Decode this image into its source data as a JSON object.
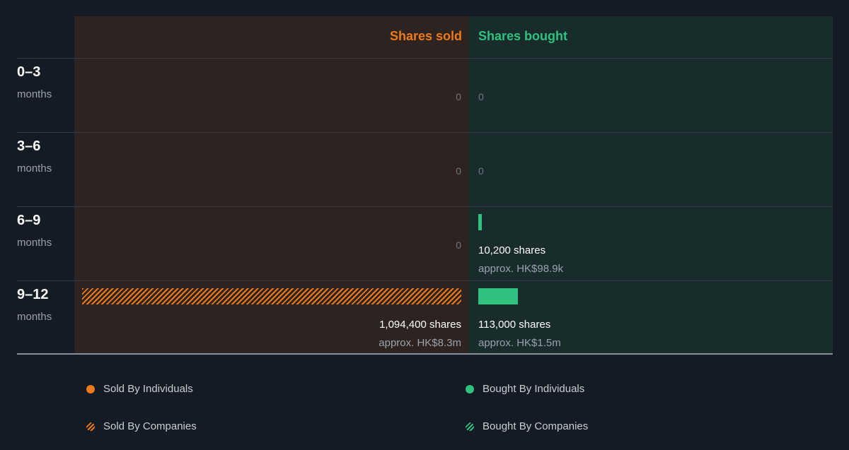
{
  "chart_data": {
    "type": "bar",
    "title": "",
    "headers": {
      "sold": "Shares sold",
      "bought": "Shares bought"
    },
    "categories": [
      {
        "period": "0–3",
        "unit": "months"
      },
      {
        "period": "3–6",
        "unit": "months"
      },
      {
        "period": "6–9",
        "unit": "months"
      },
      {
        "period": "9–12",
        "unit": "months"
      }
    ],
    "series": [
      {
        "name": "Shares sold",
        "values": [
          0,
          0,
          0,
          1094400
        ],
        "labels": [
          "0",
          "0",
          "0",
          "1,094,400 shares"
        ],
        "approx": [
          "",
          "",
          "",
          "approx. HK$8.3m"
        ],
        "by_companies": [
          false,
          false,
          false,
          true
        ]
      },
      {
        "name": "Shares bought",
        "values": [
          0,
          0,
          10200,
          113000
        ],
        "labels": [
          "0",
          "0",
          "10,200 shares",
          "113,000 shares"
        ],
        "approx": [
          "",
          "",
          "approx. HK$98.9k",
          "approx. HK$1.5m"
        ],
        "by_companies": [
          false,
          false,
          false,
          false
        ]
      }
    ],
    "legend": [
      {
        "label": "Sold By Individuals",
        "marker": "dot",
        "color": "#f07a1a"
      },
      {
        "label": "Sold By Companies",
        "marker": "striped",
        "color": "#f07a1a"
      },
      {
        "label": "Bought By Individuals",
        "marker": "dot",
        "color": "#2ec27e"
      },
      {
        "label": "Bought By Companies",
        "marker": "striped",
        "color": "#2ec27e"
      }
    ],
    "colors": {
      "sold": "#f07a1a",
      "bought": "#2ec27e"
    }
  }
}
